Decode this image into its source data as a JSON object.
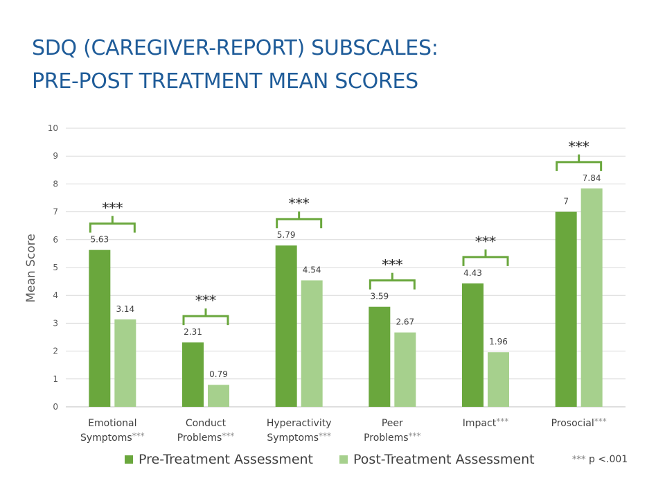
{
  "slide": {
    "title_line1": "SDQ (CAREGIVER-REPORT) SUBSCALES:",
    "title_line2": "PRE-POST TREATMENT MEAN SCORES",
    "footnote_marker": "***",
    "footnote_text": " p <.001"
  },
  "colors": {
    "title": "#1f5c99",
    "pre": "#6aa73d",
    "post": "#a6d08d",
    "bracket": "#6aa73d",
    "grid": "#d9d9d9",
    "text": "#404040"
  },
  "chart_data": {
    "type": "bar",
    "ylabel": "Mean Score",
    "xlabel": "",
    "ylim": [
      0,
      10
    ],
    "yticks": [
      0,
      1,
      2,
      3,
      4,
      5,
      6,
      7,
      8,
      9,
      10
    ],
    "grid": true,
    "legend_position": "bottom",
    "categories": [
      {
        "line1": "Emotional",
        "line2": "Symptoms",
        "marker": "***"
      },
      {
        "line1": "Conduct",
        "line2": "Problems",
        "marker": "***"
      },
      {
        "line1": "Hyperactivity",
        "line2": "Symptoms",
        "marker": "***"
      },
      {
        "line1": "Peer",
        "line2": "Problems",
        "marker": "***"
      },
      {
        "line1": "Impact",
        "line2": "",
        "marker": "***"
      },
      {
        "line1": "Prosocial",
        "line2": "",
        "marker": "***"
      }
    ],
    "series": [
      {
        "name": "Pre-Treatment Assessment",
        "values": [
          5.63,
          2.31,
          5.79,
          3.59,
          4.43,
          7
        ],
        "labels": [
          "5.63",
          "2.31",
          "5.79",
          "3.59",
          "4.43",
          "7"
        ]
      },
      {
        "name": "Post-Treatment Assessment",
        "values": [
          3.14,
          0.79,
          4.54,
          2.67,
          1.96,
          7.84
        ],
        "labels": [
          "3.14",
          "0.79",
          "4.54",
          "2.67",
          "1.96",
          "7.84"
        ]
      }
    ],
    "annotations": {
      "significance_marker": "***",
      "bracketed": [
        true,
        true,
        true,
        true,
        true,
        true
      ]
    }
  }
}
